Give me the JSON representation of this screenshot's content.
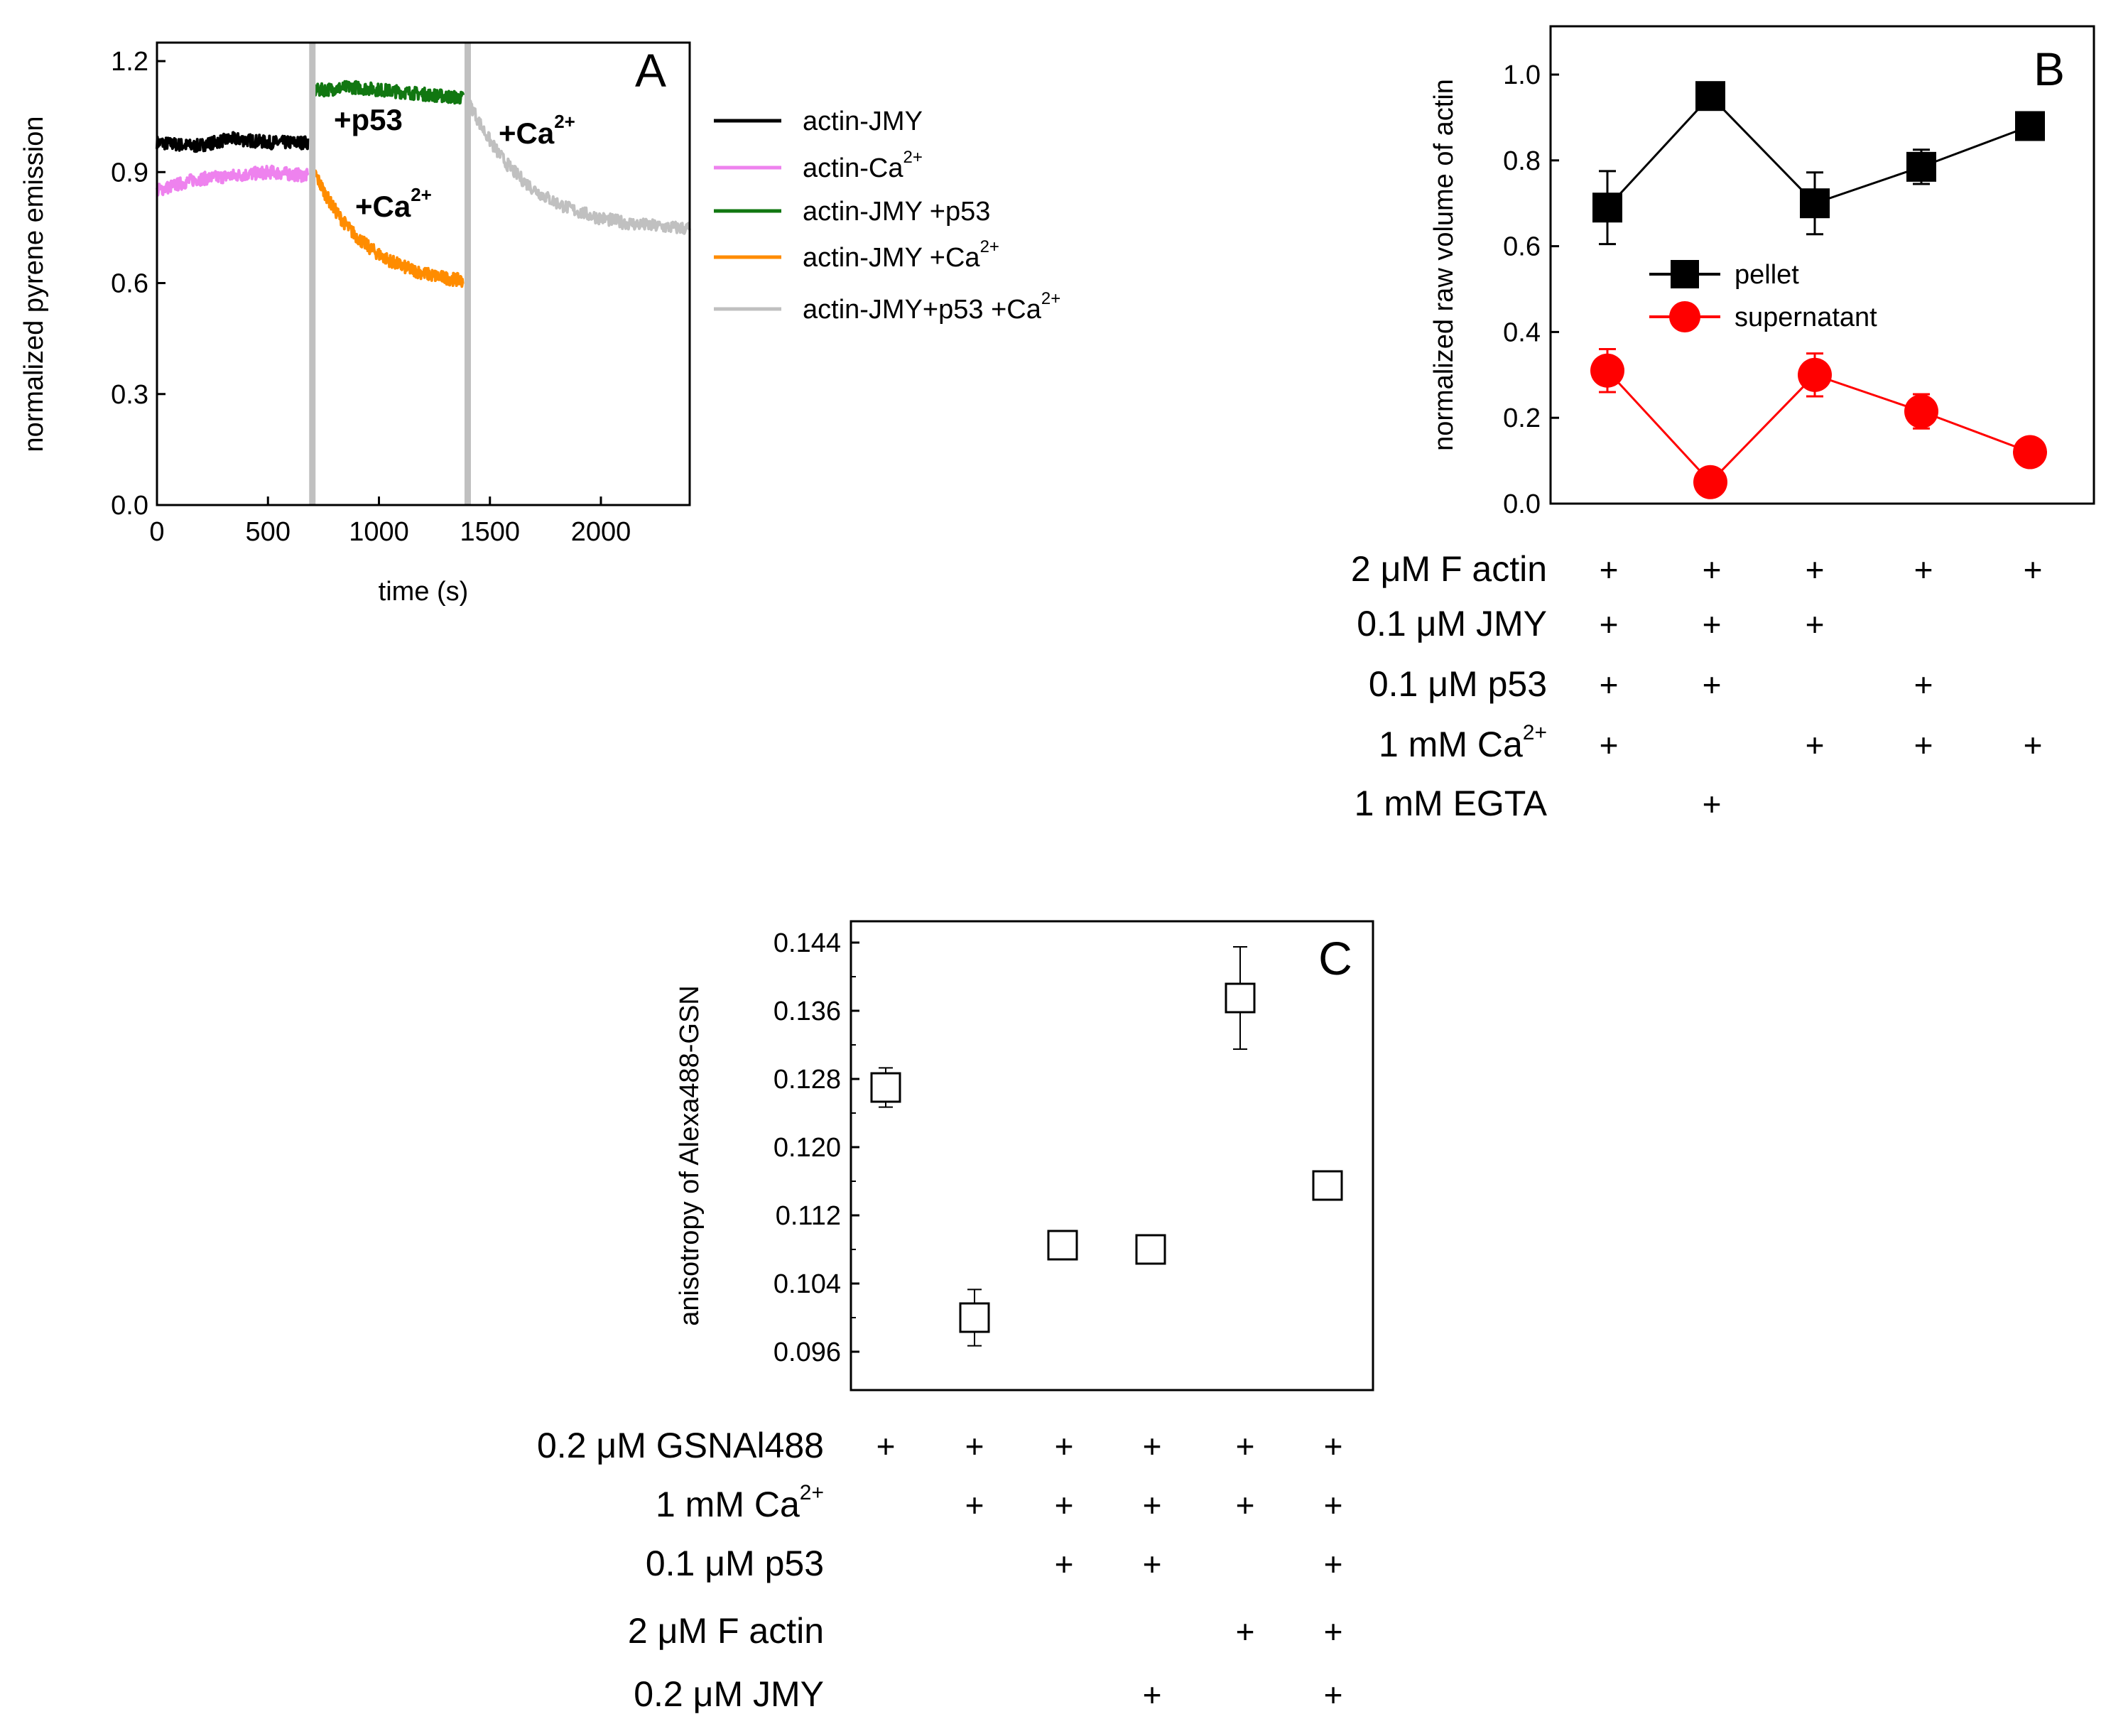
{
  "panelA": {
    "label": "A",
    "xlabel": "time (s)",
    "ylabel": "normalized pyrene emission",
    "xlim": [
      0,
      2400
    ],
    "ylim": [
      0,
      1.25
    ],
    "xticks": [
      "0",
      "500",
      "1000",
      "1500",
      "2000"
    ],
    "xtick_values": [
      0,
      500,
      1000,
      1500,
      2000
    ],
    "yticks": [
      "0.0",
      "0.3",
      "0.6",
      "0.9",
      "1.2"
    ],
    "ytick_values": [
      0,
      0.3,
      0.6,
      0.9,
      1.2
    ],
    "legend": [
      {
        "text": "actin-JMY",
        "sup": "",
        "color": "#000000"
      },
      {
        "text": "actin-Ca",
        "sup": "2+",
        "color": "#ee82ee"
      },
      {
        "text": "actin-JMY +p53",
        "sup": "",
        "color": "#117711"
      },
      {
        "text": "actin-JMY +Ca",
        "sup": "2+",
        "color": "#ff8c00"
      },
      {
        "text": "actin-JMY+p53 +Ca",
        "sup": "2+",
        "color": "#c0c0c0"
      }
    ],
    "annotations": {
      "p53": {
        "text": "+p53",
        "color": "#117711"
      },
      "ca_orange": {
        "text": "+Ca",
        "sup": "2+",
        "color": "#ff8c00"
      },
      "ca_gray": {
        "text": "+Ca",
        "sup": "2+",
        "color": "#c0c0c0"
      }
    },
    "vlines_x": [
      700,
      1400
    ]
  },
  "panelB": {
    "label": "B",
    "ylabel": "normalized raw volume of actin",
    "ylim": [
      0,
      1.1
    ],
    "yticks": [
      "0.0",
      "0.2",
      "0.4",
      "0.6",
      "0.8",
      "1.0"
    ],
    "ytick_values": [
      0,
      0.2,
      0.4,
      0.6,
      0.8,
      1.0
    ],
    "legend": [
      {
        "text": "pellet",
        "color": "#000000"
      },
      {
        "text": "supernatant",
        "color": "#ff0000"
      }
    ],
    "conditions": [
      {
        "pre": "2 ",
        "mu": "μ",
        "post": "M F actin",
        "sup": "",
        "marks": [
          1,
          1,
          1,
          1,
          1
        ]
      },
      {
        "pre": "0.1 ",
        "mu": "μ",
        "post": "M JMY",
        "sup": "",
        "marks": [
          1,
          1,
          1,
          0,
          0
        ]
      },
      {
        "pre": "0.1 ",
        "mu": "μ",
        "post": "M p53",
        "sup": "",
        "marks": [
          1,
          1,
          0,
          1,
          0
        ]
      },
      {
        "pre": "1 mM Ca",
        "mu": "",
        "post": "",
        "sup": "2+",
        "marks": [
          1,
          0,
          1,
          1,
          1
        ]
      },
      {
        "pre": "1 mM EGTA",
        "mu": "",
        "post": "",
        "sup": "",
        "marks": [
          0,
          1,
          0,
          0,
          0
        ]
      }
    ],
    "plus": "+"
  },
  "panelC": {
    "label": "C",
    "ylabel": "anisotropy of Alexa488-GSN",
    "ylim": [
      0.0915,
      0.1465
    ],
    "yticks": [
      "0.096",
      "0.104",
      "0.112",
      "0.120",
      "0.128",
      "0.136",
      "0.144"
    ],
    "ytick_values": [
      0.096,
      0.104,
      0.112,
      0.12,
      0.128,
      0.136,
      0.144
    ],
    "conditions": [
      {
        "pre": "0.2 ",
        "mu": "μ",
        "post": "M GSNAl488",
        "sup": "",
        "marks": [
          1,
          1,
          1,
          1,
          1,
          1
        ]
      },
      {
        "pre": "1 mM Ca",
        "mu": "",
        "post": "",
        "sup": "2+",
        "marks": [
          0,
          1,
          1,
          1,
          1,
          1
        ]
      },
      {
        "pre": "0.1 ",
        "mu": "μ",
        "post": "M p53",
        "sup": "",
        "marks": [
          0,
          0,
          1,
          1,
          0,
          1
        ]
      },
      {
        "pre": "2 ",
        "mu": "μ",
        "post": "M F actin",
        "sup": "",
        "marks": [
          0,
          0,
          0,
          0,
          1,
          1
        ]
      },
      {
        "pre": "0.2 ",
        "mu": "μ",
        "post": "M JMY",
        "sup": "",
        "marks": [
          0,
          0,
          0,
          1,
          0,
          1
        ]
      }
    ],
    "plus": "+"
  },
  "chart_data": [
    {
      "type": "line",
      "panel": "A",
      "title": "",
      "xlabel": "time (s)",
      "ylabel": "normalized pyrene emission",
      "xlim": [
        0,
        2400
      ],
      "ylim": [
        0,
        1.25
      ],
      "series": [
        {
          "name": "actin-JMY",
          "kind": "flat",
          "t_range": [
            0,
            680
          ],
          "y": [
            0.98,
            0.97,
            0.99,
            0.98,
            0.98
          ]
        },
        {
          "name": "actin-Ca2+",
          "kind": "flat",
          "t_range": [
            0,
            680
          ],
          "y": [
            0.85,
            0.88,
            0.89,
            0.9,
            0.89
          ]
        },
        {
          "name": "actin-JMY +p53",
          "kind": "flat",
          "t_range": [
            710,
            1380
          ],
          "y": [
            1.12,
            1.13,
            1.12,
            1.11,
            1.1
          ]
        },
        {
          "name": "actin-JMY +Ca2+",
          "kind": "decay",
          "t_range": [
            710,
            1380
          ],
          "y_start": 0.9,
          "y_end": 0.59,
          "tau": 230
        },
        {
          "name": "actin-JMY+p53 +Ca2+",
          "kind": "decay",
          "t_range": [
            1400,
            2400
          ],
          "y_start": 1.1,
          "y_end": 0.74,
          "tau": 260
        }
      ]
    },
    {
      "type": "line",
      "panel": "B",
      "title": "",
      "ylabel": "normalized raw volume of actin",
      "ylim": [
        0,
        1.1
      ],
      "categories": [
        "1",
        "2",
        "3",
        "4",
        "5"
      ],
      "series": [
        {
          "name": "pellet",
          "values": [
            0.69,
            0.95,
            0.7,
            0.785,
            0.88
          ],
          "errors": [
            0.085,
            0.0,
            0.072,
            0.04,
            0.0
          ]
        },
        {
          "name": "supernatant",
          "values": [
            0.31,
            0.05,
            0.3,
            0.215,
            0.12
          ],
          "errors": [
            0.05,
            0.0,
            0.05,
            0.04,
            0.0
          ]
        }
      ]
    },
    {
      "type": "scatter",
      "panel": "C",
      "title": "",
      "ylabel": "anisotropy of Alexa488-GSN",
      "ylim": [
        0.0915,
        0.1465
      ],
      "categories": [
        "1",
        "2",
        "3",
        "4",
        "5",
        "6"
      ],
      "series": [
        {
          "name": "anisotropy",
          "values": [
            0.127,
            0.1,
            0.1085,
            0.108,
            0.1375,
            0.1155
          ],
          "errors": [
            0.0023,
            0.0033,
            0.0013,
            0.0016,
            0.006,
            0.0013
          ]
        }
      ]
    }
  ]
}
